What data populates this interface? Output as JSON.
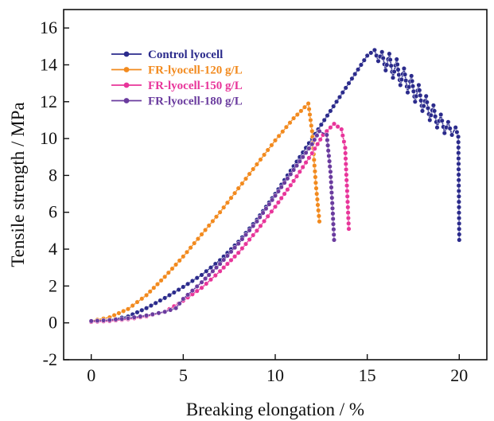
{
  "chart_data": {
    "type": "line",
    "title": "",
    "xlabel": "Breaking elongation / %",
    "ylabel": "Tensile strength / MPa",
    "xlim": [
      -1.5,
      21.5
    ],
    "ylim": [
      -2,
      17
    ],
    "xticks": [
      0,
      5,
      10,
      15,
      20
    ],
    "yticks": [
      -2,
      0,
      2,
      4,
      6,
      8,
      10,
      12,
      14,
      16
    ],
    "grid": false,
    "legend_position": "top-left",
    "series": [
      {
        "name": "Control lyocell",
        "color": "#2b2b8c",
        "points": [
          [
            0,
            0.05
          ],
          [
            1,
            0.15
          ],
          [
            2,
            0.35
          ],
          [
            3,
            0.8
          ],
          [
            4,
            1.35
          ],
          [
            5,
            1.95
          ],
          [
            6,
            2.6
          ],
          [
            7,
            3.4
          ],
          [
            8,
            4.4
          ],
          [
            9,
            5.6
          ],
          [
            10,
            7.0
          ],
          [
            11,
            8.5
          ],
          [
            12,
            10.0
          ],
          [
            13,
            11.5
          ],
          [
            14,
            13.0
          ],
          [
            15,
            14.5
          ],
          [
            15.4,
            14.8
          ],
          [
            15.6,
            14.2
          ],
          [
            15.8,
            14.7
          ],
          [
            16.0,
            13.7
          ],
          [
            16.2,
            14.6
          ],
          [
            16.4,
            13.3
          ],
          [
            16.6,
            14.3
          ],
          [
            16.8,
            12.9
          ],
          [
            17.0,
            13.8
          ],
          [
            17.2,
            12.5
          ],
          [
            17.4,
            13.4
          ],
          [
            17.6,
            12.0
          ],
          [
            17.8,
            12.9
          ],
          [
            18.0,
            11.5
          ],
          [
            18.2,
            12.3
          ],
          [
            18.4,
            11.0
          ],
          [
            18.6,
            11.8
          ],
          [
            18.8,
            10.6
          ],
          [
            19.0,
            11.3
          ],
          [
            19.2,
            10.3
          ],
          [
            19.4,
            10.9
          ],
          [
            19.6,
            10.2
          ],
          [
            19.8,
            10.6
          ],
          [
            19.95,
            10.1
          ],
          [
            20.0,
            4.8
          ],
          [
            20.0,
            4.5
          ]
        ]
      },
      {
        "name": "FR-lyocell-120 g/L",
        "color": "#f28a1e",
        "points": [
          [
            0,
            0.1
          ],
          [
            1,
            0.3
          ],
          [
            2,
            0.75
          ],
          [
            3,
            1.5
          ],
          [
            4,
            2.5
          ],
          [
            5,
            3.6
          ],
          [
            6,
            4.8
          ],
          [
            7,
            6.0
          ],
          [
            8,
            7.3
          ],
          [
            9,
            8.6
          ],
          [
            10,
            9.9
          ],
          [
            11,
            11.1
          ],
          [
            11.8,
            11.9
          ],
          [
            12.0,
            10.4
          ],
          [
            12.2,
            7.6
          ],
          [
            12.4,
            5.5
          ]
        ]
      },
      {
        "name": "FR-lyocell-150 g/L",
        "color": "#e8359a",
        "points": [
          [
            0,
            0.05
          ],
          [
            1,
            0.1
          ],
          [
            2,
            0.2
          ],
          [
            3,
            0.35
          ],
          [
            4,
            0.6
          ],
          [
            5,
            1.2
          ],
          [
            6,
            1.9
          ],
          [
            7,
            2.8
          ],
          [
            8,
            3.8
          ],
          [
            9,
            5.0
          ],
          [
            10,
            6.3
          ],
          [
            11,
            7.7
          ],
          [
            12,
            9.2
          ],
          [
            12.6,
            10.2
          ],
          [
            13.2,
            10.8
          ],
          [
            13.6,
            10.5
          ],
          [
            13.8,
            9.5
          ],
          [
            14.0,
            5.1
          ]
        ]
      },
      {
        "name": "FR-lyocell-180 g/L",
        "color": "#6a3b9e",
        "points": [
          [
            0,
            0.1
          ],
          [
            1,
            0.15
          ],
          [
            2,
            0.25
          ],
          [
            3,
            0.4
          ],
          [
            4,
            0.6
          ],
          [
            4.6,
            0.8
          ],
          [
            5,
            1.3
          ],
          [
            6,
            2.2
          ],
          [
            7,
            3.2
          ],
          [
            8,
            4.3
          ],
          [
            9,
            5.5
          ],
          [
            10,
            6.9
          ],
          [
            11,
            8.3
          ],
          [
            12,
            9.7
          ],
          [
            12.4,
            10.4
          ],
          [
            12.8,
            10.2
          ],
          [
            13.0,
            8.2
          ],
          [
            13.1,
            6.5
          ],
          [
            13.2,
            4.5
          ]
        ]
      }
    ]
  }
}
